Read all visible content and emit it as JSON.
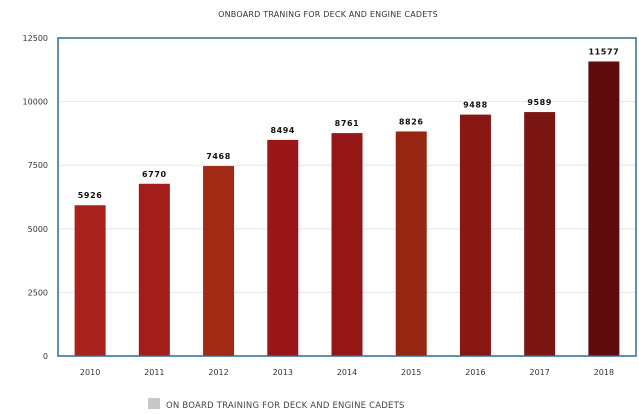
{
  "chart_data": {
    "type": "bar",
    "title": "ONBOARD TRANING FOR DECK AND ENGINE CADETS",
    "xlabel": "",
    "ylabel": "",
    "categories": [
      "2010",
      "2011",
      "2012",
      "2013",
      "2014",
      "2015",
      "2016",
      "2017",
      "2018"
    ],
    "series": [
      {
        "name": "ON BOARD TRAINING FOR DECK AND ENGINE CADETS",
        "values": [
          5926,
          6770,
          7468,
          8494,
          8761,
          8826,
          9488,
          9589,
          11577
        ],
        "value_labels": [
          "5926",
          "6770",
          "7468",
          "8494",
          "8761",
          "8826",
          "9488",
          "9589",
          "11577"
        ]
      }
    ],
    "ylim": [
      0,
      12500
    ],
    "yticks": [
      "0",
      "2500",
      "5000",
      "7500",
      "10000",
      "12500"
    ],
    "grid": true,
    "legend_position": "bottom",
    "colors": {
      "bars": [
        "#a9211b",
        "#a31d1a",
        "#a22a14",
        "#9a1518",
        "#951616",
        "#962512",
        "#881714",
        "#7c1613",
        "#5e0c0c"
      ],
      "plot_border": "#2d6b9a",
      "legend_swatch": "#c8c8c8",
      "gridline": "#e6e6e6"
    }
  }
}
